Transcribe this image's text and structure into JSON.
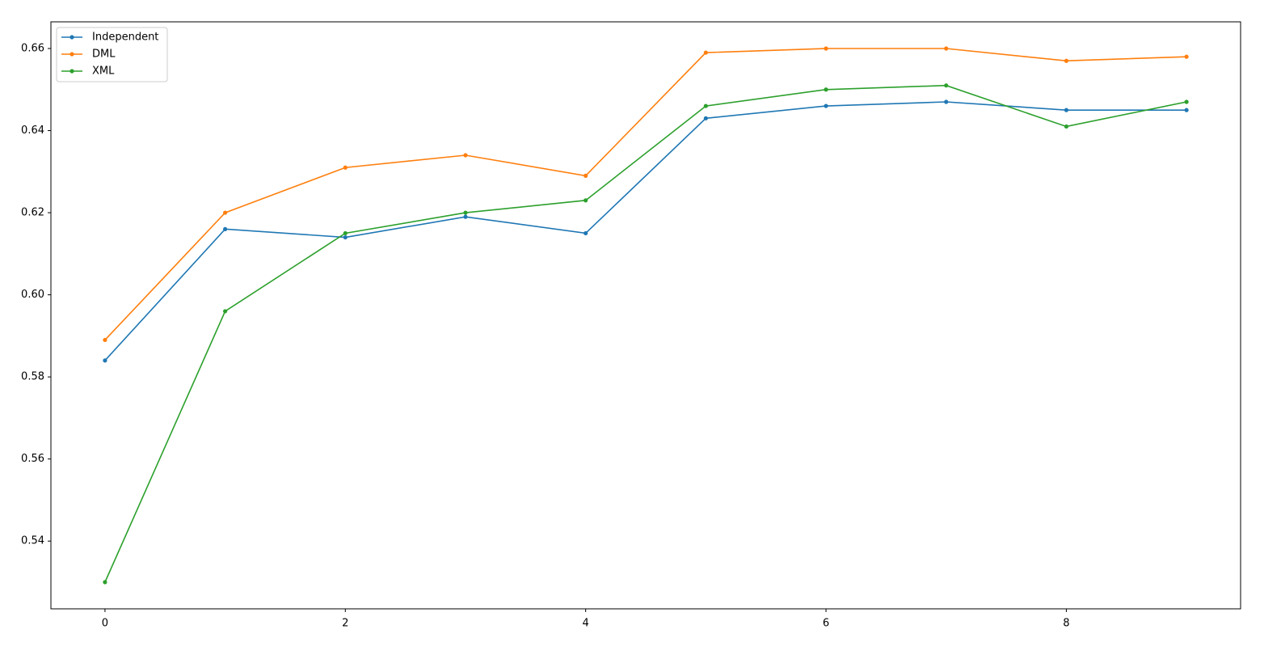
{
  "chart_data": {
    "type": "line",
    "x": [
      0,
      1,
      2,
      3,
      4,
      5,
      6,
      7,
      8,
      9
    ],
    "series": [
      {
        "name": "Independent",
        "color": "#1f77b4",
        "values": [
          0.584,
          0.616,
          0.614,
          0.619,
          0.615,
          0.643,
          0.646,
          0.647,
          0.645,
          0.645
        ]
      },
      {
        "name": "DML",
        "color": "#ff7f0e",
        "values": [
          0.589,
          0.62,
          0.631,
          0.634,
          0.629,
          0.659,
          0.66,
          0.66,
          0.657,
          0.658
        ]
      },
      {
        "name": "XML",
        "color": "#2ca02c",
        "values": [
          0.53,
          0.596,
          0.615,
          0.62,
          0.623,
          0.646,
          0.65,
          0.651,
          0.641,
          0.647
        ]
      }
    ],
    "xlim": [
      -0.45,
      9.45
    ],
    "xticks": [
      0,
      2,
      4,
      6,
      8
    ],
    "ylim": [
      0.5235,
      0.6665
    ],
    "yticks": [
      0.54,
      0.56,
      0.58,
      {
        "value": 0.6,
        "label": "0.60"
      },
      0.62,
      0.64,
      0.66
    ],
    "legend": "upper left",
    "grid": false
  }
}
